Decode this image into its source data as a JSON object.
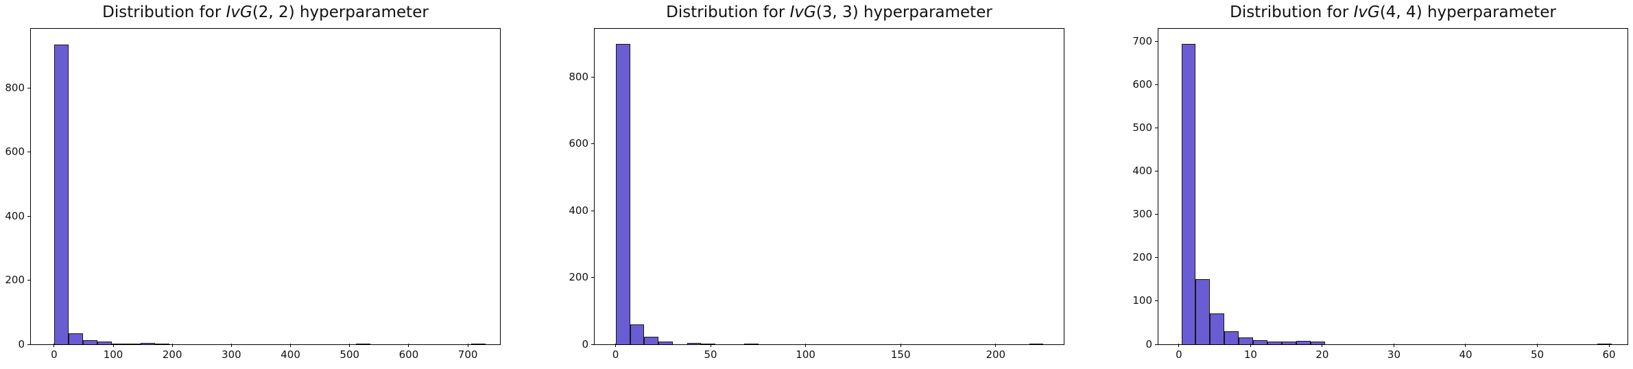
{
  "figure": {
    "background": "#ffffff"
  },
  "chart_data": [
    {
      "type": "bar",
      "subtype": "histogram",
      "title_prefix": "Distribution for ",
      "title_math": "IvG",
      "title_args": "(2, 2)",
      "title_suffix": " hyperparameter",
      "bar_color": "#6a5dd3",
      "bar_edge_color": "#161616",
      "bin_start": 0.4,
      "bin_width": 24.32,
      "counts": [
        935,
        35,
        12,
        8,
        3,
        2,
        5,
        2,
        0,
        0,
        0,
        0,
        0,
        0,
        0,
        0,
        0,
        0,
        0,
        0,
        0,
        3,
        0,
        0,
        0,
        0,
        0,
        0,
        0,
        1
      ],
      "xlim": [
        -39.3,
        754.4
      ],
      "ylim": [
        0,
        985
      ],
      "xticks": [
        0,
        100,
        200,
        300,
        400,
        500,
        600,
        700
      ],
      "yticks": [
        0,
        200,
        400,
        600,
        800
      ],
      "grid": false,
      "legend": null
    },
    {
      "type": "bar",
      "subtype": "histogram",
      "title_prefix": "Distribution for ",
      "title_math": "IvG",
      "title_args": "(3, 3)",
      "title_suffix": " hyperparameter",
      "bar_color": "#6a5dd3",
      "bar_edge_color": "#161616",
      "bin_start": 0.1,
      "bin_width": 7.5,
      "counts": [
        900,
        60,
        22,
        8,
        0,
        5,
        2,
        0,
        0,
        3,
        0,
        0,
        0,
        0,
        0,
        0,
        0,
        0,
        0,
        0,
        0,
        0,
        0,
        0,
        0,
        0,
        0,
        0,
        0,
        1
      ],
      "xlim": [
        -11.0,
        235.8
      ],
      "ylim": [
        0,
        945
      ],
      "xticks": [
        0,
        50,
        100,
        150,
        200
      ],
      "yticks": [
        0,
        200,
        400,
        600,
        800
      ],
      "grid": false,
      "legend": null
    },
    {
      "type": "bar",
      "subtype": "histogram",
      "title_prefix": "Distribution for ",
      "title_math": "IvG",
      "title_args": "(4, 4)",
      "title_suffix": " hyperparameter",
      "bar_color": "#6a5dd3",
      "bar_edge_color": "#161616",
      "bin_start": 0.35,
      "bin_width": 2.0,
      "counts": [
        695,
        150,
        72,
        30,
        16,
        9,
        7,
        7,
        8,
        6,
        0,
        0,
        0,
        0,
        0,
        0,
        0,
        0,
        0,
        0,
        0,
        0,
        0,
        0,
        0,
        0,
        0,
        0,
        0,
        1
      ],
      "xlim": [
        -2.86,
        62.58
      ],
      "ylim": [
        0,
        730
      ],
      "xticks": [
        0,
        10,
        20,
        30,
        40,
        50,
        60
      ],
      "yticks": [
        0,
        100,
        200,
        300,
        400,
        500,
        600,
        700
      ],
      "grid": false,
      "legend": null
    }
  ]
}
